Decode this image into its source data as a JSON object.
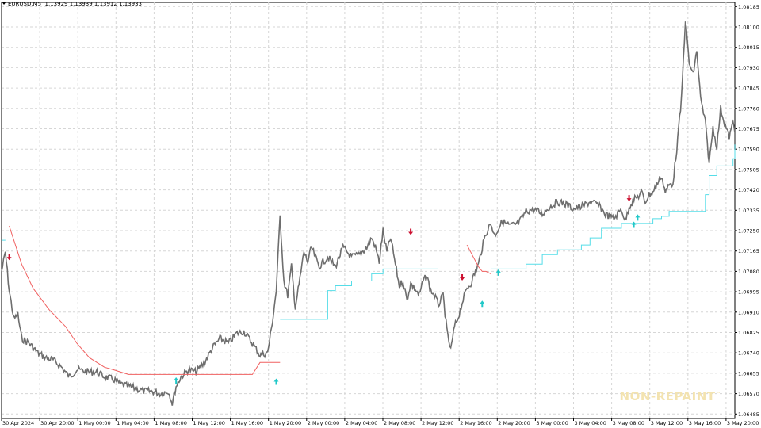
{
  "header": {
    "symbol": "EURUSD,M5",
    "quote": "1.13929 1.13939 1.13912 1.13933"
  },
  "watermark": {
    "text": "NON-REPAINT",
    "mark": "™",
    "color": "#f3e3b0"
  },
  "colors": {
    "price": "#6e6e6e",
    "stop_down": "#f06060",
    "stop_up": "#55dde8",
    "arrow_up": "#20c8c8",
    "arrow_down": "#cc1030",
    "grid": "#d6d6d6",
    "axis": "#000000"
  },
  "chart_data": {
    "type": "line",
    "y_ticks": [
      "1.08185",
      "1.08100",
      "1.08015",
      "1.07930",
      "1.07845",
      "1.07760",
      "1.07675",
      "1.07590",
      "1.07505",
      "1.07420",
      "1.07335",
      "1.07250",
      "1.07165",
      "1.07080",
      "1.06995",
      "1.06910",
      "1.06825",
      "1.06740",
      "1.06655",
      "1.06570",
      "1.06485"
    ],
    "x_ticks": [
      "30 Apr 2024",
      "30 Apr 20:00",
      "1 May 00:00",
      "1 May 04:00",
      "1 May 08:00",
      "1 May 12:00",
      "1 May 16:00",
      "1 May 20:00",
      "2 May 00:00",
      "2 May 04:00",
      "2 May 08:00",
      "2 May 12:00",
      "2 May 16:00",
      "2 May 20:00",
      "3 May 00:00",
      "3 May 04:00",
      "3 May 08:00",
      "3 May 12:00",
      "3 May 16:00",
      "3 May 20:00"
    ],
    "ylim": [
      1.0647,
      1.08199
    ],
    "grid": true,
    "series": [
      {
        "name": "",
        "kind": "price",
        "points": [
          [
            0,
            1.0708
          ],
          [
            0.04,
            1.0716
          ],
          [
            0.08,
            1.07
          ],
          [
            0.13,
            1.0688
          ],
          [
            0.17,
            1.069
          ],
          [
            0.21,
            1.068
          ],
          [
            0.29,
            1.0678
          ],
          [
            0.38,
            1.0674
          ],
          [
            0.46,
            1.0672
          ],
          [
            0.54,
            1.0671
          ],
          [
            0.63,
            1.0668
          ],
          [
            0.71,
            1.0664
          ],
          [
            0.79,
            1.0667
          ],
          [
            0.92,
            1.0666
          ],
          [
            1.0,
            1.0666
          ],
          [
            1.08,
            1.0664
          ],
          [
            1.17,
            1.0663
          ],
          [
            1.25,
            1.0661
          ],
          [
            1.33,
            1.066
          ],
          [
            1.42,
            1.0659
          ],
          [
            1.5,
            1.0658
          ],
          [
            1.58,
            1.0658
          ],
          [
            1.67,
            1.0657
          ],
          [
            1.75,
            1.0658
          ],
          [
            1.79,
            1.0653
          ],
          [
            1.83,
            1.066
          ],
          [
            1.88,
            1.0664
          ],
          [
            1.96,
            1.0667
          ],
          [
            2.04,
            1.0666
          ],
          [
            2.13,
            1.067
          ],
          [
            2.21,
            1.0676
          ],
          [
            2.29,
            1.068
          ],
          [
            2.38,
            1.0678
          ],
          [
            2.46,
            1.0682
          ],
          [
            2.54,
            1.0683
          ],
          [
            2.63,
            1.0678
          ],
          [
            2.71,
            1.0673
          ],
          [
            2.79,
            1.0674
          ],
          [
            2.83,
            1.0684
          ],
          [
            2.88,
            1.07
          ],
          [
            2.92,
            1.0731
          ],
          [
            2.96,
            1.0704
          ],
          [
            3.0,
            1.0698
          ],
          [
            3.04,
            1.071
          ],
          [
            3.08,
            1.0693
          ],
          [
            3.13,
            1.0705
          ],
          [
            3.17,
            1.0716
          ],
          [
            3.21,
            1.0712
          ],
          [
            3.25,
            1.0718
          ],
          [
            3.33,
            1.071
          ],
          [
            3.42,
            1.0714
          ],
          [
            3.5,
            1.071
          ],
          [
            3.58,
            1.0718
          ],
          [
            3.67,
            1.0714
          ],
          [
            3.75,
            1.0715
          ],
          [
            3.83,
            1.0718
          ],
          [
            3.88,
            1.0722
          ],
          [
            3.92,
            1.0718
          ],
          [
            3.96,
            1.0712
          ],
          [
            4.0,
            1.0725
          ],
          [
            4.04,
            1.0716
          ],
          [
            4.08,
            1.0722
          ],
          [
            4.13,
            1.0711
          ],
          [
            4.17,
            1.0702
          ],
          [
            4.21,
            1.0704
          ],
          [
            4.25,
            1.0696
          ],
          [
            4.29,
            1.0703
          ],
          [
            4.33,
            1.0701
          ],
          [
            4.38,
            1.0698
          ],
          [
            4.42,
            1.0704
          ],
          [
            4.46,
            1.0706
          ],
          [
            4.5,
            1.07
          ],
          [
            4.54,
            1.0698
          ],
          [
            4.58,
            1.0694
          ],
          [
            4.63,
            1.0698
          ],
          [
            4.67,
            1.0683
          ],
          [
            4.71,
            1.0675
          ],
          [
            4.75,
            1.0685
          ],
          [
            4.79,
            1.0689
          ],
          [
            4.83,
            1.0695
          ],
          [
            4.88,
            1.0701
          ],
          [
            4.92,
            1.0703
          ],
          [
            4.96,
            1.0707
          ],
          [
            5.0,
            1.0711
          ],
          [
            5.04,
            1.0718
          ],
          [
            5.08,
            1.0724
          ],
          [
            5.13,
            1.0728
          ],
          [
            5.17,
            1.0723
          ],
          [
            5.21,
            1.0726
          ],
          [
            5.25,
            1.0729
          ],
          [
            5.33,
            1.0727
          ],
          [
            5.42,
            1.0728
          ],
          [
            5.5,
            1.0733
          ],
          [
            5.58,
            1.0734
          ],
          [
            5.67,
            1.0732
          ],
          [
            5.75,
            1.0735
          ],
          [
            5.83,
            1.0737
          ],
          [
            5.92,
            1.0736
          ],
          [
            6.0,
            1.0734
          ],
          [
            6.08,
            1.0735
          ],
          [
            6.17,
            1.0737
          ],
          [
            6.25,
            1.0736
          ],
          [
            6.33,
            1.0732
          ],
          [
            6.42,
            1.073
          ],
          [
            6.5,
            1.0734
          ],
          [
            6.54,
            1.0729
          ],
          [
            6.58,
            1.0735
          ],
          [
            6.63,
            1.0738
          ],
          [
            6.67,
            1.0739
          ],
          [
            6.71,
            1.0741
          ],
          [
            6.75,
            1.0737
          ],
          [
            6.79,
            1.074
          ],
          [
            6.83,
            1.0741
          ],
          [
            6.88,
            1.0745
          ],
          [
            6.92,
            1.0748
          ],
          [
            6.96,
            1.0741
          ],
          [
            7.0,
            1.0744
          ],
          [
            7.04,
            1.0745
          ],
          [
            7.08,
            1.0759
          ],
          [
            7.13,
            1.078
          ],
          [
            7.17,
            1.0813
          ],
          [
            7.21,
            1.0795
          ],
          [
            7.25,
            1.079
          ],
          [
            7.29,
            1.08
          ],
          [
            7.33,
            1.078
          ],
          [
            7.38,
            1.077
          ],
          [
            7.42,
            1.0753
          ],
          [
            7.46,
            1.0768
          ],
          [
            7.5,
            1.076
          ],
          [
            7.54,
            1.0776
          ],
          [
            7.58,
            1.077
          ],
          [
            7.63,
            1.0764
          ],
          [
            7.67,
            1.077
          ],
          [
            7.71,
            1.0764
          ],
          [
            7.75,
            1.0762
          ],
          [
            7.79,
            1.0758
          ],
          [
            7.83,
            1.0765
          ],
          [
            7.88,
            1.0762
          ],
          [
            7.92,
            1.0768
          ]
        ]
      },
      {
        "name": "",
        "kind": "stop_down",
        "points": [
          [
            0.08,
            1.0727
          ],
          [
            0.21,
            1.0711
          ],
          [
            0.33,
            1.0701
          ],
          [
            0.5,
            1.0692
          ],
          [
            0.67,
            1.0685
          ],
          [
            0.79,
            1.0678
          ],
          [
            0.92,
            1.0672
          ],
          [
            1.0,
            1.067
          ],
          [
            1.08,
            1.0668
          ],
          [
            1.17,
            1.0667
          ],
          [
            1.25,
            1.0666
          ],
          [
            1.33,
            1.0665
          ],
          [
            1.5,
            1.0665
          ],
          [
            1.75,
            1.0665
          ],
          [
            2.0,
            1.0665
          ],
          [
            2.25,
            1.0665
          ],
          [
            2.5,
            1.0665
          ],
          [
            2.63,
            1.0665
          ],
          [
            2.71,
            1.067
          ],
          [
            2.92,
            1.067
          ]
        ]
      },
      {
        "name": "",
        "kind": "stop_down",
        "points": [
          [
            4.88,
            1.0719
          ],
          [
            4.92,
            1.0716
          ],
          [
            4.96,
            1.0713
          ],
          [
            5.0,
            1.071
          ],
          [
            5.04,
            1.0708
          ],
          [
            5.08,
            1.0708
          ],
          [
            5.13,
            1.0707
          ]
        ]
      },
      {
        "name": "",
        "kind": "stop_up",
        "points": [
          [
            -0.08,
            1.0721
          ],
          [
            0.04,
            1.0721
          ]
        ]
      },
      {
        "name": "",
        "kind": "stop_up",
        "points": [
          [
            2.92,
            1.0688
          ],
          [
            3.33,
            1.0688
          ],
          [
            3.42,
            1.07
          ],
          [
            3.5,
            1.0702
          ],
          [
            3.67,
            1.0704
          ],
          [
            3.88,
            1.0707
          ],
          [
            4.0,
            1.0709
          ],
          [
            4.25,
            1.0709
          ],
          [
            4.5,
            1.0709
          ],
          [
            4.58,
            1.0709
          ]
        ]
      },
      {
        "name": "",
        "kind": "stop_up",
        "points": [
          [
            5.13,
            1.0709
          ],
          [
            5.5,
            1.0711
          ],
          [
            5.67,
            1.0715
          ],
          [
            5.83,
            1.0717
          ],
          [
            6.08,
            1.0719
          ],
          [
            6.17,
            1.0722
          ],
          [
            6.29,
            1.0726
          ],
          [
            6.5,
            1.0728
          ],
          [
            6.75,
            1.0728
          ],
          [
            6.83,
            1.073
          ],
          [
            6.92,
            1.0731
          ],
          [
            7.0,
            1.0733
          ],
          [
            7.13,
            1.0733
          ],
          [
            7.33,
            1.0733
          ],
          [
            7.38,
            1.074
          ],
          [
            7.42,
            1.0748
          ],
          [
            7.5,
            1.0752
          ],
          [
            7.67,
            1.0755
          ],
          [
            7.83,
            1.0759
          ],
          [
            7.96,
            1.0761
          ]
        ]
      }
    ],
    "arrows": [
      {
        "dir": "down",
        "x": 0.08,
        "y": 1.0714
      },
      {
        "dir": "up",
        "x": 2.88,
        "y": 1.0662
      },
      {
        "dir": "down",
        "x": 4.29,
        "y": 1.07245
      },
      {
        "dir": "down",
        "x": 4.83,
        "y": 1.07055
      },
      {
        "dir": "up",
        "x": 5.21,
        "y": 1.07075
      },
      {
        "dir": "down",
        "x": 6.58,
        "y": 1.07385
      },
      {
        "dir": "up",
        "x": 6.63,
        "y": 1.07275
      },
      {
        "dir": "up",
        "x": 6.67,
        "y": 1.07305
      },
      {
        "dir": "up",
        "x": 1.83,
        "y": 1.06625
      },
      {
        "dir": "up",
        "x": 5.04,
        "y": 1.06945
      }
    ]
  }
}
